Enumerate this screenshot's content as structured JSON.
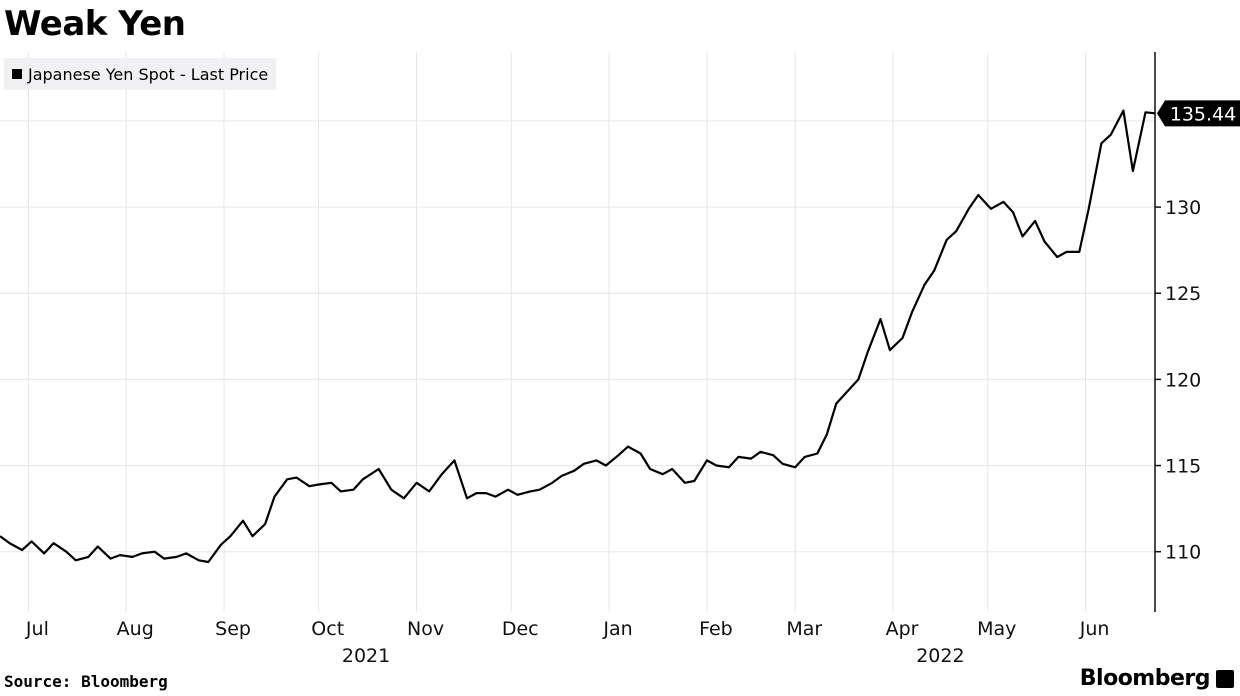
{
  "header": {
    "title": "Weak Yen"
  },
  "footer": {
    "source": "Source: Bloomberg",
    "brand": "Bloomberg"
  },
  "colors": {
    "line": "#000000",
    "grid": "#e6e6e6",
    "legend_bg": "#f1f1f3",
    "badge_bg": "#000000",
    "badge_text": "#ffffff"
  },
  "chart_data": {
    "type": "line",
    "title": "Weak Yen",
    "legend": "Japanese Yen Spot - Last Price",
    "legend_position": "top-left",
    "grid": true,
    "last_value_label": "135.44",
    "x_axis": {
      "type": "date",
      "range": [
        "2021-06-22",
        "2022-06-23"
      ],
      "tick_labels": [
        {
          "label": "Jul",
          "date": "2021-07-01"
        },
        {
          "label": "Aug",
          "date": "2021-08-01"
        },
        {
          "label": "Sep",
          "date": "2021-09-01"
        },
        {
          "label": "Oct",
          "date": "2021-10-01"
        },
        {
          "label": "Nov",
          "date": "2021-11-01"
        },
        {
          "label": "Dec",
          "date": "2021-12-01"
        },
        {
          "label": "Jan",
          "date": "2022-01-01"
        },
        {
          "label": "Feb",
          "date": "2022-02-01"
        },
        {
          "label": "Mar",
          "date": "2022-03-01"
        },
        {
          "label": "Apr",
          "date": "2022-04-01"
        },
        {
          "label": "May",
          "date": "2022-05-01"
        },
        {
          "label": "Jun",
          "date": "2022-06-01"
        }
      ],
      "year_labels": [
        {
          "label": "2021",
          "date": "2021-10-16"
        },
        {
          "label": "2022",
          "date": "2022-04-16"
        }
      ]
    },
    "y_axis": {
      "position": "right",
      "ylim": [
        106.5,
        139
      ],
      "ticks": [
        110,
        115,
        120,
        125,
        130
      ]
    },
    "series": [
      {
        "name": "Japanese Yen Spot - Last Price",
        "x": [
          "2021-06-22",
          "2021-06-25",
          "2021-06-29",
          "2021-07-02",
          "2021-07-06",
          "2021-07-09",
          "2021-07-13",
          "2021-07-16",
          "2021-07-20",
          "2021-07-23",
          "2021-07-27",
          "2021-07-30",
          "2021-08-03",
          "2021-08-06",
          "2021-08-10",
          "2021-08-13",
          "2021-08-17",
          "2021-08-20",
          "2021-08-24",
          "2021-08-27",
          "2021-08-31",
          "2021-09-03",
          "2021-09-07",
          "2021-09-10",
          "2021-09-14",
          "2021-09-17",
          "2021-09-21",
          "2021-09-24",
          "2021-09-28",
          "2021-10-01",
          "2021-10-05",
          "2021-10-08",
          "2021-10-12",
          "2021-10-15",
          "2021-10-20",
          "2021-10-24",
          "2021-10-28",
          "2021-11-01",
          "2021-11-05",
          "2021-11-09",
          "2021-11-13",
          "2021-11-17",
          "2021-11-20",
          "2021-11-23",
          "2021-11-26",
          "2021-11-30",
          "2021-12-03",
          "2021-12-07",
          "2021-12-10",
          "2021-12-14",
          "2021-12-17",
          "2021-12-21",
          "2021-12-24",
          "2021-12-28",
          "2021-12-31",
          "2022-01-04",
          "2022-01-07",
          "2022-01-11",
          "2022-01-14",
          "2022-01-18",
          "2022-01-21",
          "2022-01-25",
          "2022-01-28",
          "2022-02-01",
          "2022-02-04",
          "2022-02-08",
          "2022-02-11",
          "2022-02-15",
          "2022-02-18",
          "2022-02-22",
          "2022-02-25",
          "2022-03-01",
          "2022-03-04",
          "2022-03-08",
          "2022-03-11",
          "2022-03-14",
          "2022-03-17",
          "2022-03-21",
          "2022-03-24",
          "2022-03-28",
          "2022-03-31",
          "2022-04-04",
          "2022-04-07",
          "2022-04-11",
          "2022-04-14",
          "2022-04-18",
          "2022-04-21",
          "2022-04-25",
          "2022-04-28",
          "2022-05-02",
          "2022-05-06",
          "2022-05-09",
          "2022-05-12",
          "2022-05-16",
          "2022-05-19",
          "2022-05-23",
          "2022-05-26",
          "2022-05-30",
          "2022-06-02",
          "2022-06-06",
          "2022-06-09",
          "2022-06-13",
          "2022-06-16",
          "2022-06-20",
          "2022-06-23"
        ],
        "y": [
          110.9,
          110.5,
          110.1,
          110.6,
          109.9,
          110.5,
          110.0,
          109.5,
          109.7,
          110.3,
          109.6,
          109.8,
          109.7,
          109.9,
          110.0,
          109.6,
          109.7,
          109.9,
          109.5,
          109.4,
          110.4,
          110.9,
          111.8,
          110.9,
          111.6,
          113.2,
          114.2,
          114.3,
          113.8,
          113.9,
          114.0,
          113.5,
          113.6,
          114.2,
          114.8,
          113.6,
          113.1,
          114.0,
          113.5,
          114.5,
          115.3,
          113.1,
          113.4,
          113.4,
          113.2,
          113.6,
          113.3,
          113.5,
          113.6,
          114.0,
          114.4,
          114.7,
          115.1,
          115.3,
          115.0,
          115.6,
          116.1,
          115.7,
          114.8,
          114.5,
          114.8,
          114.0,
          114.1,
          115.3,
          115.0,
          114.9,
          115.5,
          115.4,
          115.8,
          115.6,
          115.1,
          114.9,
          115.5,
          115.7,
          116.8,
          118.6,
          119.2,
          120.0,
          121.6,
          123.5,
          121.7,
          122.4,
          123.9,
          125.5,
          126.3,
          128.1,
          128.6,
          129.9,
          130.7,
          129.9,
          130.3,
          129.7,
          128.3,
          129.2,
          128.0,
          127.1,
          127.4,
          127.4,
          129.9,
          133.7,
          134.2,
          135.6,
          132.1,
          135.5,
          135.44
        ]
      }
    ]
  }
}
